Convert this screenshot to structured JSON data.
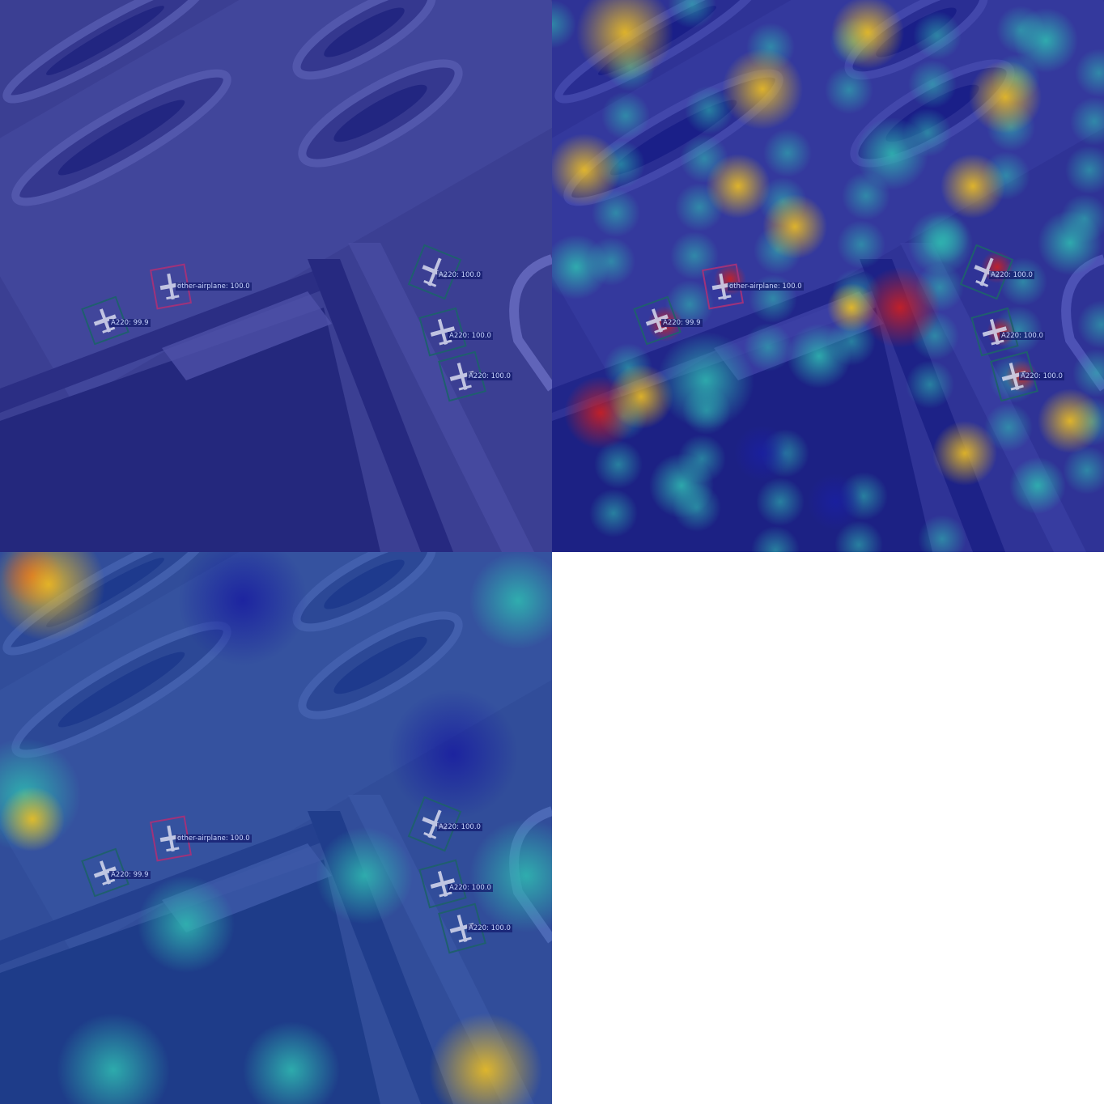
{
  "panels": [
    {
      "id": "original-overlay",
      "style": "blue-tint"
    },
    {
      "id": "fine-heatmap",
      "style": "fine-heat"
    },
    {
      "id": "coarse-heatmap",
      "style": "coarse-heat"
    }
  ],
  "detections": [
    {
      "label": "A220: 99.9",
      "color": "#1f5f6e"
    },
    {
      "label": "other-airplane: 100.0",
      "color": "#a0327a"
    },
    {
      "label": "A220: 100.0",
      "color": "#1f5f6e"
    },
    {
      "label": "A220: 100.0",
      "color": "#1f5f6e"
    },
    {
      "label": "A220: 100.0",
      "color": "#1f5f6e"
    }
  ],
  "colors": {
    "tint": "#2a2f9e",
    "heat_low": "#1a1fa0",
    "heat_mid": "#2fb7b0",
    "heat_high": "#f0c020",
    "heat_peak": "#d02020",
    "background": "#ffffff"
  }
}
